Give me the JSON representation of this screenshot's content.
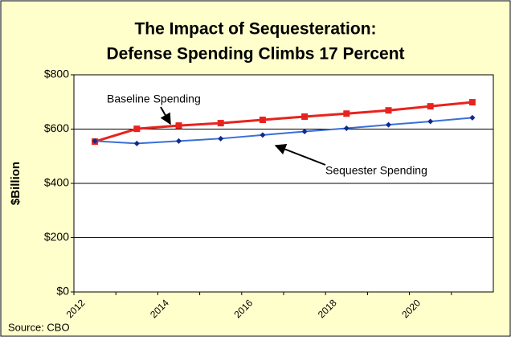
{
  "chart_data": {
    "type": "line",
    "title": [
      "The Impact of Sequesteration:",
      "Defense Spending Climbs 17 Percent"
    ],
    "y_label": "$Billion",
    "source": "Source: CBO",
    "categories": [
      "2012",
      null,
      "2014",
      null,
      "2016",
      null,
      "2018",
      null,
      "2020",
      null
    ],
    "series": [
      {
        "name": "Baseline Spending",
        "color": "#e8231e",
        "marker_color": "#e8231e",
        "marker": "square",
        "values": [
          554,
          601,
          613,
          622,
          634,
          646,
          657,
          669,
          684,
          699
        ]
      },
      {
        "name": "Sequester Spending",
        "color": "#3a6fd8",
        "marker_color": "#102a8a",
        "marker": "diamond",
        "values": [
          556,
          547,
          556,
          565,
          578,
          591,
          603,
          616,
          628,
          642
        ]
      }
    ],
    "ylim": [
      0,
      800
    ],
    "yticks": [
      {
        "value": 0,
        "label": "$0"
      },
      {
        "value": 200,
        "label": "$200"
      },
      {
        "value": 400,
        "label": "$400"
      },
      {
        "value": 600,
        "label": "$600"
      },
      {
        "value": 800,
        "label": "$800"
      }
    ],
    "grid": true
  }
}
